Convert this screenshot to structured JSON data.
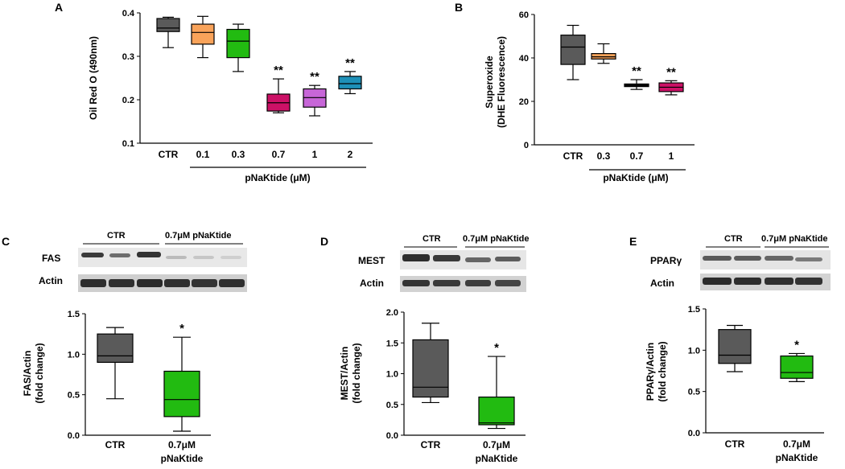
{
  "panels": {
    "A": "A",
    "B": "B",
    "C": "C",
    "D": "D",
    "E": "E"
  },
  "chart_data": [
    {
      "id": "A",
      "type": "box",
      "ylabel": "Oil Red O (490nm)",
      "ylim": [
        0.1,
        0.4
      ],
      "yticks": [
        "0.1",
        "0.2",
        "0.3",
        "0.4"
      ],
      "categories": [
        "CTR",
        "0.1",
        "0.3",
        "0.7",
        "1",
        "2"
      ],
      "bracket_label": "pNaKtide (μM)",
      "colors": [
        "#5a5a5a",
        "#f9a35a",
        "#22bb11",
        "#cc1166",
        "#c766d8",
        "#1e90b8"
      ],
      "boxes": [
        {
          "min": 0.32,
          "q1": 0.357,
          "median": 0.365,
          "q3": 0.387,
          "max": 0.39,
          "sig": ""
        },
        {
          "min": 0.297,
          "q1": 0.328,
          "median": 0.355,
          "q3": 0.374,
          "max": 0.392,
          "sig": ""
        },
        {
          "min": 0.265,
          "q1": 0.297,
          "median": 0.335,
          "q3": 0.362,
          "max": 0.374,
          "sig": ""
        },
        {
          "min": 0.17,
          "q1": 0.174,
          "median": 0.193,
          "q3": 0.213,
          "max": 0.248,
          "sig": "**"
        },
        {
          "min": 0.163,
          "q1": 0.183,
          "median": 0.205,
          "q3": 0.225,
          "max": 0.233,
          "sig": "**"
        },
        {
          "min": 0.214,
          "q1": 0.225,
          "median": 0.237,
          "q3": 0.254,
          "max": 0.265,
          "sig": "**"
        }
      ]
    },
    {
      "id": "B",
      "type": "box",
      "ylabel_lines": [
        "Superoxide",
        "(DHE Fluorescence)"
      ],
      "ylim": [
        0,
        60
      ],
      "yticks": [
        "0",
        "20",
        "40",
        "60"
      ],
      "categories": [
        "CTR",
        "0.3",
        "0.7",
        "1"
      ],
      "bracket_label": "pNaKtide (μM)",
      "colors": [
        "#5a5a5a",
        "#f9a35a",
        "#111111",
        "#cc1166"
      ],
      "boxes": [
        {
          "min": 30,
          "q1": 37,
          "median": 45,
          "q3": 50.5,
          "max": 55,
          "sig": ""
        },
        {
          "min": 37.5,
          "q1": 39.5,
          "median": 40.5,
          "q3": 42,
          "max": 46.5,
          "sig": ""
        },
        {
          "min": 25.5,
          "q1": 26.8,
          "median": 27.3,
          "q3": 28,
          "max": 30,
          "sig": "**"
        },
        {
          "min": 23,
          "q1": 24.5,
          "median": 26.5,
          "q3": 28.5,
          "max": 29.5,
          "sig": "**"
        }
      ]
    },
    {
      "id": "C",
      "type": "box",
      "ylabel_lines": [
        "FAS/Actin",
        "(fold change)"
      ],
      "ylim": [
        0,
        1.5
      ],
      "yticks": [
        "0.0",
        "0.5",
        "1.0",
        "1.5"
      ],
      "categories": [
        "CTR",
        "0.7μM"
      ],
      "categories_line2": [
        "",
        "pNaKtide"
      ],
      "colors": [
        "#5a5a5a",
        "#22bb11"
      ],
      "boxes": [
        {
          "min": 0.45,
          "q1": 0.9,
          "median": 0.98,
          "q3": 1.25,
          "max": 1.33,
          "sig": ""
        },
        {
          "min": 0.05,
          "q1": 0.23,
          "median": 0.44,
          "q3": 0.79,
          "max": 1.21,
          "sig": "*"
        }
      ]
    },
    {
      "id": "D",
      "type": "box",
      "ylabel_lines": [
        "MEST/Actin",
        "(fold change)"
      ],
      "ylim": [
        0,
        2.0
      ],
      "yticks": [
        "0.0",
        "0.5",
        "1.0",
        "1.5",
        "2.0"
      ],
      "categories": [
        "CTR",
        "0.7μM"
      ],
      "categories_line2": [
        "",
        "pNaKtide"
      ],
      "colors": [
        "#5a5a5a",
        "#22bb11"
      ],
      "boxes": [
        {
          "min": 0.53,
          "q1": 0.62,
          "median": 0.78,
          "q3": 1.55,
          "max": 1.82,
          "sig": ""
        },
        {
          "min": 0.11,
          "q1": 0.17,
          "median": 0.2,
          "q3": 0.62,
          "max": 1.28,
          "sig": "*"
        }
      ]
    },
    {
      "id": "E",
      "type": "box",
      "ylabel_lines": [
        "PPARγ/Actin",
        "(fold change)"
      ],
      "ylim": [
        0,
        1.5
      ],
      "yticks": [
        "0.0",
        "0.5",
        "1.0",
        "1.5"
      ],
      "categories": [
        "CTR",
        "0.7μM"
      ],
      "categories_line2": [
        "",
        "pNaKtide"
      ],
      "colors": [
        "#5a5a5a",
        "#22bb11"
      ],
      "boxes": [
        {
          "min": 0.74,
          "q1": 0.84,
          "median": 0.94,
          "q3": 1.25,
          "max": 1.3,
          "sig": ""
        },
        {
          "min": 0.62,
          "q1": 0.66,
          "median": 0.73,
          "q3": 0.93,
          "max": 0.96,
          "sig": "*"
        }
      ]
    }
  ],
  "blots": {
    "C": {
      "group1": "CTR",
      "group2": "0.7μM pNaKtide",
      "row1": "FAS",
      "row2": "Actin"
    },
    "D": {
      "group1": "CTR",
      "group2": "0.7μM pNaKtide",
      "row1": "MEST",
      "row2": "Actin"
    },
    "E": {
      "group1": "CTR",
      "group2": "0.7μM pNaKtide",
      "row1": "PPARγ",
      "row2": "Actin"
    }
  }
}
